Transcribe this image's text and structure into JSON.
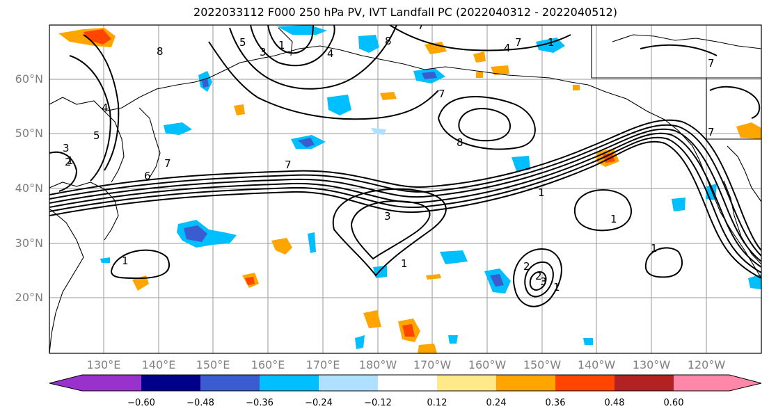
{
  "title": "2022033112 F000 250 hPa PV, IVT Landfall PC (2022040312 - 2022040512)",
  "map": {
    "lat_labels": [
      "60°N",
      "50°N",
      "40°N",
      "30°N",
      "20°N"
    ],
    "lon_labels": [
      "130°E",
      "140°E",
      "150°E",
      "160°E",
      "170°E",
      "180°W",
      "170°W",
      "160°W",
      "150°W",
      "140°W",
      "130°W",
      "120°W"
    ],
    "contour_labels": [
      "8",
      "5",
      "3",
      "1",
      "4",
      "8",
      "7",
      "4",
      "7",
      "1",
      "4",
      "5",
      "3",
      "1",
      "2",
      "6",
      "7",
      "7",
      "8",
      "7",
      "3",
      "1",
      "1",
      "1",
      "1",
      "2",
      "3",
      "1",
      "2",
      "1",
      "7",
      "7"
    ],
    "colors": {
      "land_outline": "#000000",
      "grid": "#9a9a9a",
      "contour": "#000000"
    }
  },
  "colorbar": {
    "colors": [
      "#9932CC",
      "#00008B",
      "#3B5BD0",
      "#00BFFF",
      "#B0E0FF",
      "#FFFFFF",
      "#FFEA8A",
      "#FFA500",
      "#FF4500",
      "#B22222",
      "#FF88AA"
    ],
    "labels": [
      "−0.60",
      "−0.48",
      "−0.36",
      "−0.24",
      "−0.12",
      "0.12",
      "0.24",
      "0.36",
      "0.48",
      "0.60"
    ]
  }
}
